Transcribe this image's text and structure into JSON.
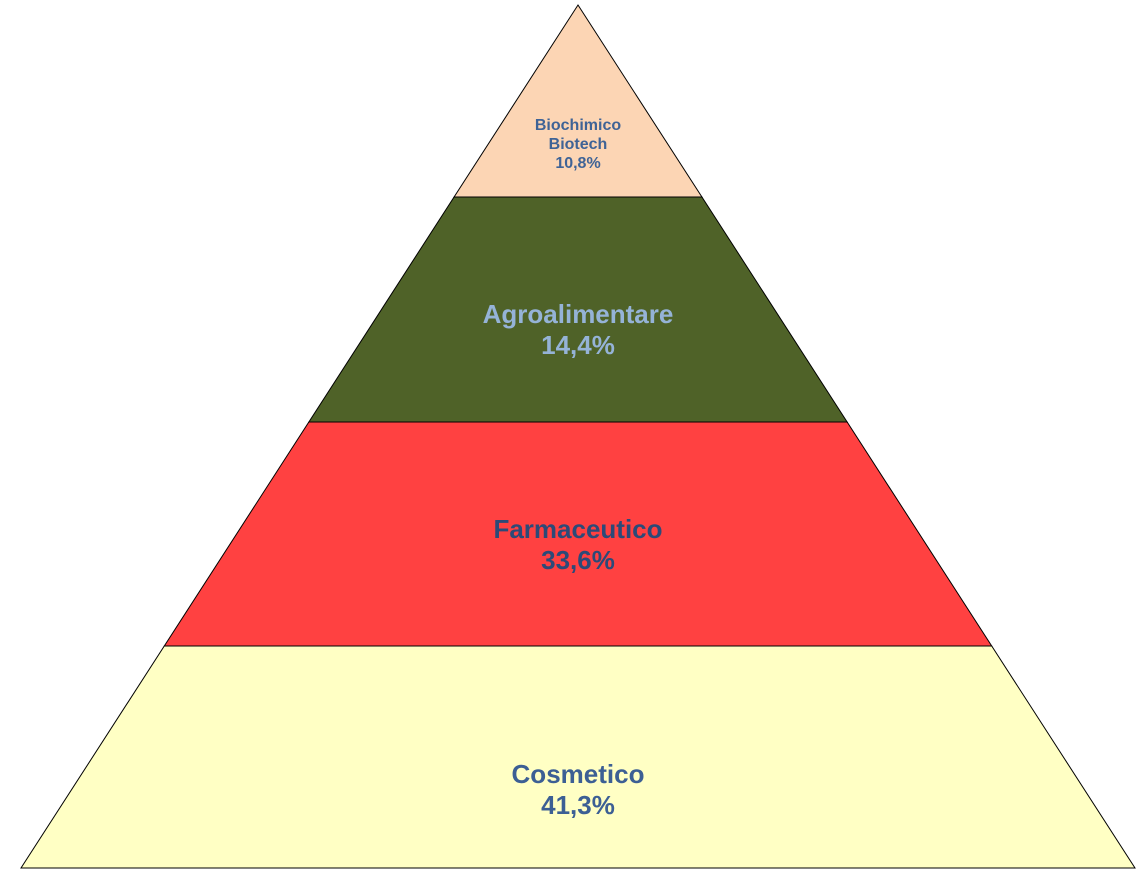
{
  "chart_data": {
    "type": "pyramid",
    "categories": [
      "Biochimico Biotech",
      "Agroalimentare",
      "Farmaceutico",
      "Cosmetico"
    ],
    "values": [
      10.8,
      14.4,
      33.6,
      41.3
    ],
    "value_labels": [
      "10,8%",
      "14,4%",
      "33,6%",
      "41,3%"
    ],
    "colors": [
      "#fcd5b4",
      "#4f6228",
      "#ff4141",
      "#ffffc4"
    ],
    "label_colors": [
      "#3f6396",
      "#95b3d7",
      "#2c4a78",
      "#3c5f94"
    ]
  }
}
